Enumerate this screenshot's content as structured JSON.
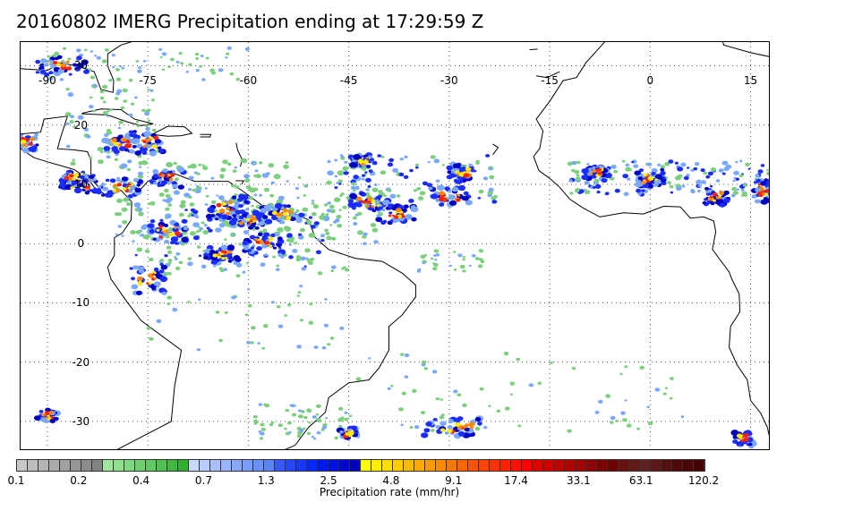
{
  "title": "20160802 IMERG Precipitation ending at 17:29:59 Z",
  "map": {
    "lon_labels": [
      "-90",
      "-75",
      "-60",
      "-45",
      "-30",
      "-15",
      "0",
      "15"
    ],
    "lon_values": [
      -90,
      -75,
      -60,
      -45,
      -30,
      -15,
      0,
      15
    ],
    "lat_labels": [
      "30",
      "20",
      "10",
      "0",
      "-10",
      "-20",
      "-30"
    ],
    "lat_values": [
      30,
      20,
      10,
      0,
      -10,
      -20,
      -30
    ],
    "extent": {
      "lon": [
        -94,
        18
      ],
      "lat": [
        -35,
        34
      ]
    },
    "land_color": "#ffffff",
    "gridline_style": "dotted"
  },
  "colorbar": {
    "label": "Precipitation rate (mm/hr)",
    "ticks": [
      "0.1",
      "0.2",
      "0.4",
      "0.7",
      "1.3",
      "2.5",
      "4.8",
      "9.1",
      "17.4",
      "33.1",
      "63.1",
      "120.2"
    ],
    "colors": [
      "#c8c8c8",
      "#bebebe",
      "#b4b4b4",
      "#aaaaaa",
      "#a0a0a0",
      "#969696",
      "#8c8c8c",
      "#828282",
      "#a0e8a0",
      "#90e090",
      "#80d880",
      "#70d070",
      "#60c860",
      "#50c050",
      "#40b840",
      "#30b030",
      "#c8d8ff",
      "#b8ccff",
      "#a8c0ff",
      "#98b4ff",
      "#88a8ff",
      "#789cff",
      "#6890ff",
      "#5884ff",
      "#3858ff",
      "#2848ff",
      "#1838ff",
      "#0828ff",
      "#0018f0",
      "#0010e0",
      "#0008d0",
      "#0000c0",
      "#ffff00",
      "#ffee00",
      "#ffdd00",
      "#ffcc00",
      "#ffbb00",
      "#ffaa00",
      "#ff9900",
      "#ff8800",
      "#ff7700",
      "#ff6600",
      "#ff5500",
      "#ff4400",
      "#ff3300",
      "#ff2200",
      "#ff1100",
      "#ff0000",
      "#e00000",
      "#d00000",
      "#c00000",
      "#b00000",
      "#a00000",
      "#900000",
      "#800000",
      "#700000",
      "#6a1010",
      "#651818",
      "#602020",
      "#5a1818",
      "#551010",
      "#500808",
      "#4a0505",
      "#450000"
    ]
  },
  "precip_colors": {
    "light_green": "#7ccf7c",
    "light_blue": "#7aa8ff",
    "blue": "#1a2cff",
    "dark_blue": "#0000c0",
    "yellow": "#ffee00",
    "orange": "#ff8800",
    "red": "#ff2200"
  }
}
